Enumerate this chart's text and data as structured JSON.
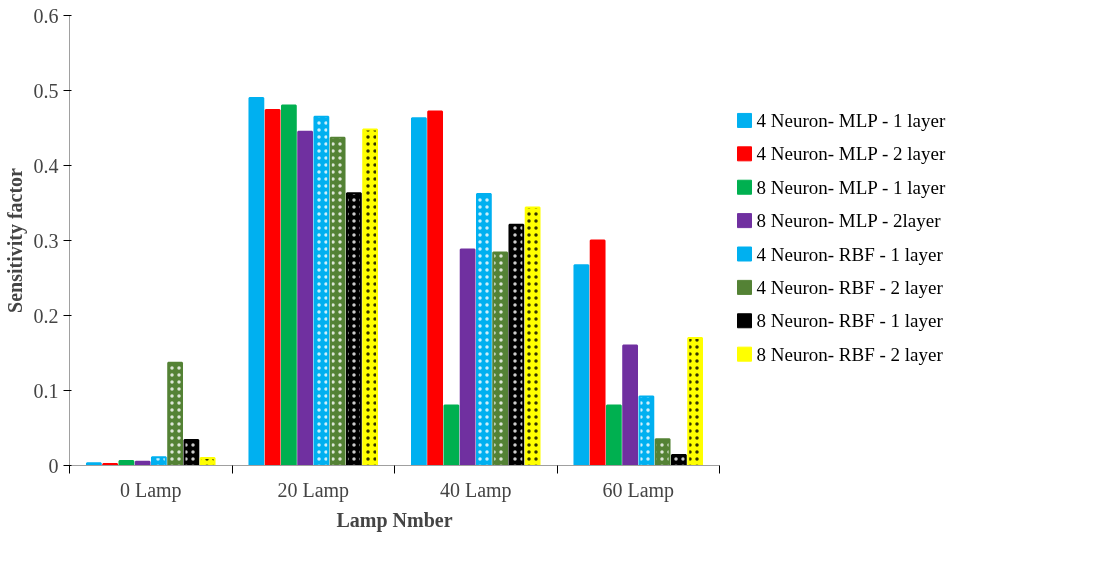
{
  "chart_data": {
    "type": "bar",
    "xlabel": "Lamp Nmber",
    "ylabel": "Sensitivity factor",
    "categories": [
      "0 Lamp",
      "20 Lamp",
      "40 Lamp",
      "60 Lamp"
    ],
    "series": [
      {
        "name": " 4 Neuron-  MLP - 1 layer",
        "color": "#00b0f0",
        "values": [
          0.003,
          0.49,
          0.463,
          0.267
        ]
      },
      {
        "name": "4 Neuron-  MLP - 2 layer",
        "color": "#ff0000",
        "values": [
          0.002,
          0.474,
          0.472,
          0.3
        ]
      },
      {
        "name": "8 Neuron-  MLP - 1 layer",
        "color": "#00b050",
        "values": [
          0.006,
          0.48,
          0.08,
          0.08
        ]
      },
      {
        "name": "8 Neuron-  MLP - 2layer",
        "color": "#7030a0",
        "values": [
          0.005,
          0.445,
          0.288,
          0.16
        ]
      },
      {
        "name": "4 Neuron-  RBF - 1 layer",
        "color": "#00b0f0",
        "values": [
          0.011,
          0.465,
          0.362,
          0.092
        ]
      },
      {
        "name": "4 Neuron-  RBF - 2 layer",
        "color": "#548235",
        "values": [
          0.137,
          0.437,
          0.284,
          0.035
        ]
      },
      {
        "name": "8 Neuron-  RBF - 1 layer",
        "color": "#000000",
        "values": [
          0.034,
          0.363,
          0.321,
          0.014
        ]
      },
      {
        "name": "8 Neuron-  RBF - 2 layer",
        "color": "#ffff00",
        "values": [
          0.01,
          0.448,
          0.344,
          0.17
        ]
      }
    ],
    "ylim": [
      0,
      0.6
    ],
    "yticks": [
      0,
      0.1,
      0.2,
      0.3,
      0.4,
      0.5,
      0.6
    ],
    "legend": "right"
  }
}
